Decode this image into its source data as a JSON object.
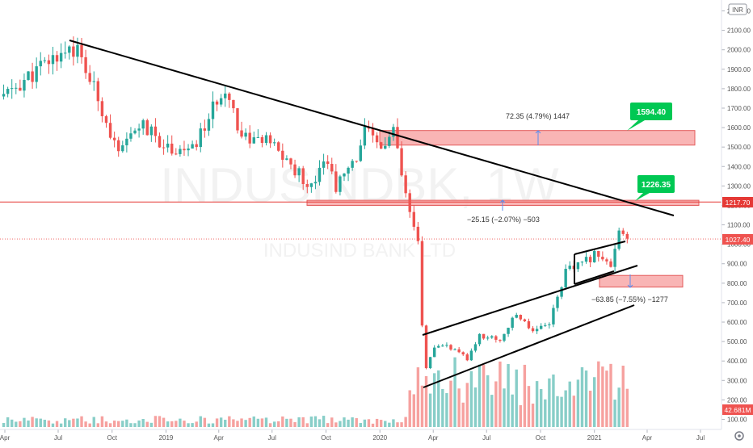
{
  "header": {
    "currency": "INR",
    "settings_icon": "gear-icon"
  },
  "watermark": {
    "symbol": "INDUSINDBK, 1W",
    "company": "INDUSIND BANK LTD"
  },
  "price_tags": {
    "level_line": "1217.70",
    "last_price": "1027.40",
    "volume": "42.681M"
  },
  "annotations": {
    "target_upper": "1594.40",
    "target_mid": "1226.35",
    "measure_upper": "72.35 (4.79%) 1447",
    "measure_mid": "−25.15 (−2.07%) −503",
    "measure_lower": "−63.85 (−7.55%) −1277"
  },
  "colors": {
    "up": "#26a69a",
    "down": "#ef5350",
    "zone_fill": "#f7a3a3",
    "zone_border": "#e35b5b",
    "level_line": "#e53935",
    "measure_line": "#5b8def",
    "target_box": "#00c853"
  },
  "chart_data": {
    "type": "candlestick",
    "title": "INDUSINDBK, 1W",
    "subtitle": "INDUSIND BANK LTD",
    "x_tick_labels": [
      "Apr",
      "Jul",
      "Oct",
      "2019",
      "Apr",
      "Jul",
      "Oct",
      "2020",
      "Apr",
      "Jul",
      "Oct",
      "2021",
      "Apr",
      "Jul"
    ],
    "y_tick_labels": [
      "100.00",
      "200.00",
      "300.00",
      "400.00",
      "500.00",
      "600.00",
      "700.00",
      "800.00",
      "900.00",
      "1000.00",
      "1100.00",
      "1200.00",
      "1300.00",
      "1400.00",
      "1500.00",
      "1600.00",
      "1700.00",
      "1800.00",
      "1900.00",
      "2000.00",
      "2100.00",
      "2200.00"
    ],
    "ylim": [
      50,
      2250
    ],
    "grid": false,
    "price_anchor_points": [
      {
        "date": "2018-03-30",
        "close": 1760
      },
      {
        "date": "2018-07-20",
        "close": 2020
      },
      {
        "date": "2018-08-03",
        "close": 1990
      },
      {
        "date": "2018-09-14",
        "close": 1700
      },
      {
        "date": "2018-10-12",
        "close": 1450
      },
      {
        "date": "2018-11-16",
        "close": 1620
      },
      {
        "date": "2019-01-04",
        "close": 1500
      },
      {
        "date": "2019-02-15",
        "close": 1480
      },
      {
        "date": "2019-04-12",
        "close": 1820
      },
      {
        "date": "2019-05-10",
        "close": 1560
      },
      {
        "date": "2019-06-28",
        "close": 1520
      },
      {
        "date": "2019-08-09",
        "close": 1380
      },
      {
        "date": "2019-09-06",
        "close": 1300
      },
      {
        "date": "2019-09-27",
        "close": 1460
      },
      {
        "date": "2019-10-18",
        "close": 1300
      },
      {
        "date": "2019-11-15",
        "close": 1400
      },
      {
        "date": "2019-12-06",
        "close": 1580
      },
      {
        "date": "2020-01-03",
        "close": 1490
      },
      {
        "date": "2020-01-24",
        "close": 1580
      },
      {
        "date": "2020-02-14",
        "close": 1240
      },
      {
        "date": "2020-03-06",
        "close": 1000
      },
      {
        "date": "2020-03-13",
        "close": 580
      },
      {
        "date": "2020-03-20",
        "close": 370
      },
      {
        "date": "2020-04-03",
        "close": 460
      },
      {
        "date": "2020-04-24",
        "close": 480
      },
      {
        "date": "2020-05-29",
        "close": 410
      },
      {
        "date": "2020-06-19",
        "close": 530
      },
      {
        "date": "2020-07-24",
        "close": 510
      },
      {
        "date": "2020-08-21",
        "close": 640
      },
      {
        "date": "2020-09-18",
        "close": 560
      },
      {
        "date": "2020-10-16",
        "close": 600
      },
      {
        "date": "2020-11-13",
        "close": 860
      },
      {
        "date": "2020-12-11",
        "close": 900
      },
      {
        "date": "2021-01-08",
        "close": 960
      },
      {
        "date": "2021-01-29",
        "close": 880
      },
      {
        "date": "2021-02-12",
        "close": 1050
      },
      {
        "date": "2021-02-26",
        "close": 1027.4
      }
    ],
    "horizontal_levels": [
      1217.7
    ],
    "zones": [
      {
        "from": 1510,
        "to": 1585
      },
      {
        "from": 1200,
        "to": 1226.35
      },
      {
        "from": 780,
        "to": 840
      }
    ],
    "volume_last": "42.681M",
    "series": [
      {
        "name": "INDUSIND BANK LTD",
        "kind": "price"
      },
      {
        "name": "Volume",
        "kind": "volume"
      }
    ]
  }
}
